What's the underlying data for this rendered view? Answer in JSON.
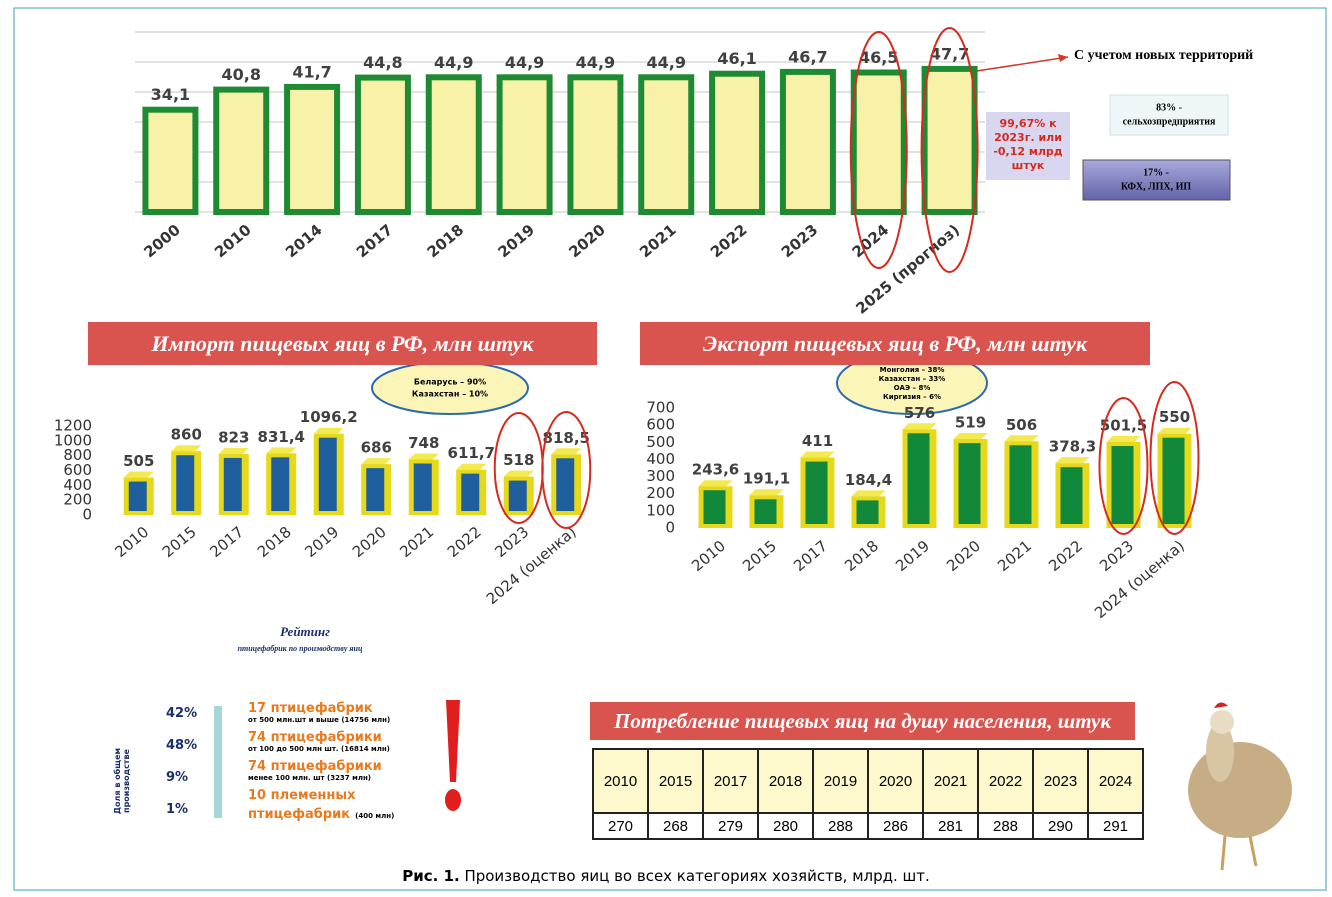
{
  "chart_data": [
    {
      "type": "bar",
      "categories": [
        "2000",
        "2010",
        "2014",
        "2017",
        "2018",
        "2019",
        "2020",
        "2021",
        "2022",
        "2023",
        "2024",
        "2025 (прогноз)"
      ],
      "values": [
        34.1,
        40.8,
        41.7,
        44.8,
        44.9,
        44.9,
        44.9,
        44.9,
        46.1,
        46.7,
        46.5,
        47.7
      ],
      "value_labels": [
        "34,1",
        "40,8",
        "41,7",
        "44,8",
        "44,9",
        "44,9",
        "44,9",
        "44,9",
        "46,1",
        "46,7",
        "46,5",
        "47,7"
      ],
      "color": "#f8f2a8",
      "edge_color": "#1e8a34",
      "ylim": [
        0,
        60
      ],
      "yticks": [
        0,
        10,
        20,
        30,
        40,
        50,
        60
      ],
      "grid": true
    },
    {
      "type": "bar",
      "title": "Импорт пищевых яиц в РФ, млн штук",
      "categories": [
        "2010",
        "2015",
        "2017",
        "2018",
        "2019",
        "2020",
        "2021",
        "2022",
        "2023",
        "2024 (оценка)"
      ],
      "values": [
        505,
        860,
        823,
        831.4,
        1096.2,
        686,
        748,
        611.7,
        518,
        818.5
      ],
      "value_labels": [
        "505",
        "860",
        "823",
        "831,4",
        "1096,2",
        "686",
        "748",
        "611,7",
        "518",
        "818,5"
      ],
      "color": "#e6d81a",
      "inner_color": "#1f5f9e",
      "ylim": [
        0,
        1200
      ],
      "yticks": [
        0,
        200,
        400,
        600,
        800,
        1000,
        1200
      ],
      "grid": false
    },
    {
      "type": "bar",
      "title": "Экспорт пищевых яиц в РФ, млн штук",
      "categories": [
        "2010",
        "2015",
        "2017",
        "2018",
        "2019",
        "2020",
        "2021",
        "2022",
        "2023",
        "2024 (оценка)"
      ],
      "values": [
        243.6,
        191.1,
        411,
        184.4,
        576,
        519,
        506,
        378.3,
        501.5,
        550
      ],
      "value_labels": [
        "243,6",
        "191,1",
        "411",
        "184,4",
        "576",
        "519",
        "506",
        "378,3",
        "501,5",
        "550"
      ],
      "color": "#e6d81a",
      "inner_color": "#12893a",
      "ylim": [
        0,
        700
      ],
      "yticks": [
        0,
        100,
        200,
        300,
        400,
        500,
        600,
        700
      ],
      "grid": false
    }
  ],
  "annotations": {
    "territories": "С учетом новых территорий",
    "change": [
      "99,67% к",
      "2023г. или",
      "-0,12 млрд",
      "штук"
    ],
    "share_agro": [
      "83% -",
      "сельхозпредприятия"
    ],
    "share_small": [
      "17% -",
      "КФХ, ЛПХ, ИП"
    ],
    "import_sources": [
      "Беларусь – 90%",
      "Казахстан – 10%"
    ],
    "export_destinations": [
      "Монголия – 38%",
      "Казахстан – 33%",
      "ОАЭ – 8%",
      "Киргизия – 6%"
    ]
  },
  "rating": {
    "title": "Рейтинг",
    "subtitle": "птицефабрик по производству яиц",
    "axis_label": "Доля в общем производстве",
    "shares": [
      "42%",
      "48%",
      "9%",
      "1%"
    ],
    "items": [
      {
        "name": "17 птицефабрик",
        "detail": "от 500 млн.шт и выше (14756 млн)"
      },
      {
        "name": "74 птицефабрики",
        "detail": "от 100 до 500 млн шт. (16814 млн)"
      },
      {
        "name": "74 птицефабрики",
        "detail": "менее 100 млн. шт (3237 млн)"
      },
      {
        "name": "10 племенных птицефабрик",
        "detail": "(400 млн)"
      }
    ]
  },
  "table": {
    "title": "Потребление пищевых яиц на душу населения, штук",
    "header": [
      "2010",
      "2015",
      "2017",
      "2018",
      "2019",
      "2020",
      "2021",
      "2022",
      "2023",
      "2024"
    ],
    "row": [
      "270",
      "268",
      "279",
      "280",
      "288",
      "286",
      "281",
      "288",
      "290",
      "291"
    ]
  },
  "caption": {
    "label": "Рис. 1.",
    "text": "Производство яиц во всех категориях хозяйств, млрд. шт."
  }
}
